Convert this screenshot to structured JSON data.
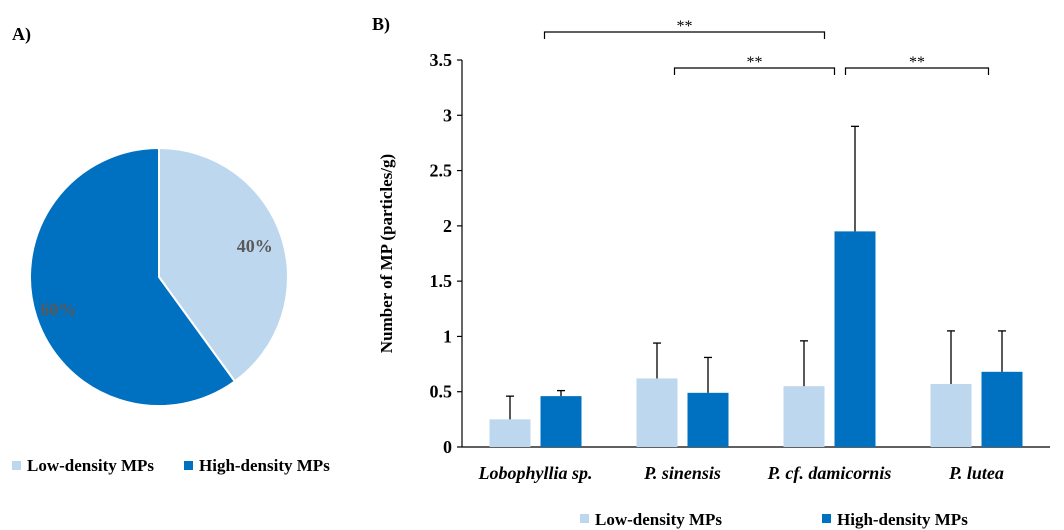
{
  "panel_a_label": "A)",
  "panel_b_label": "B)",
  "colors": {
    "low": "#bdd7ee",
    "high": "#0070c0",
    "axis": "#000000",
    "pct_text": "#595959"
  },
  "chart_data": [
    {
      "type": "pie",
      "slices": [
        {
          "name": "Low-density MPs",
          "value": 40,
          "label": "40%",
          "color": "#bdd7ee"
        },
        {
          "name": "High-density MPs",
          "value": 60,
          "label": "60%",
          "color": "#0070c0"
        }
      ],
      "legend": [
        "Low-density MPs",
        "High-density MPs"
      ],
      "legend_position": "bottom"
    },
    {
      "type": "bar",
      "categories": [
        "Lobophyllia sp.",
        "P. sinensis",
        "P. cf. damicornis",
        "P. lutea"
      ],
      "series": [
        {
          "name": "Low-density MPs",
          "values": [
            0.25,
            0.62,
            0.55,
            0.57
          ],
          "errors": [
            0.21,
            0.32,
            0.41,
            0.48
          ],
          "color": "#bdd7ee"
        },
        {
          "name": "High-density MPs",
          "values": [
            0.46,
            0.49,
            1.95,
            0.68
          ],
          "errors": [
            0.05,
            0.32,
            0.95,
            0.37
          ],
          "color": "#0070c0"
        }
      ],
      "ylabel": "Number of MP (particles/g)",
      "ylim": [
        0,
        3.5
      ],
      "yticks": [
        "0",
        "0.5",
        "1",
        "1.5",
        "2",
        "2.5",
        "3",
        "3.5"
      ],
      "grid": false,
      "legend_position": "bottom",
      "significance": [
        {
          "label": "**",
          "from": "Lobophyllia sp.",
          "to": "P. cf. damicornis"
        },
        {
          "label": "**",
          "from": "P. sinensis",
          "to": "P. cf. damicornis"
        },
        {
          "label": "**",
          "from": "P. cf. damicornis",
          "to": "P. lutea"
        }
      ]
    }
  ]
}
